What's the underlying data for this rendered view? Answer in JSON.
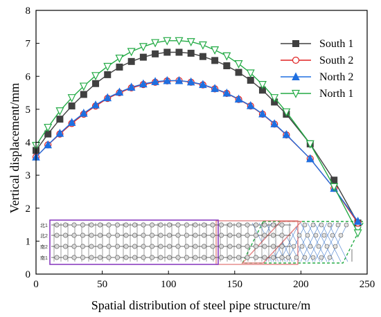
{
  "chart_data": {
    "type": "line",
    "title": "",
    "xlabel": "Spatial distribution of steel pipe structure/m",
    "ylabel": "Vertical displacement/mm",
    "xlim": [
      0,
      250
    ],
    "ylim": [
      0,
      8
    ],
    "xticks": [
      0,
      50,
      100,
      150,
      200,
      250
    ],
    "yticks": [
      0,
      1,
      2,
      3,
      4,
      5,
      6,
      7,
      8
    ],
    "grid": false,
    "legend_position": "top-right",
    "series": [
      {
        "name": "South 1",
        "color": "#404040",
        "marker": "square",
        "x": [
          0,
          9,
          18,
          27,
          36,
          45,
          54,
          63,
          72,
          81,
          90,
          99,
          108,
          117,
          126,
          135,
          144,
          153,
          162,
          171,
          180,
          189,
          207,
          225,
          243
        ],
        "y": [
          3.75,
          4.25,
          4.7,
          5.1,
          5.45,
          5.78,
          6.05,
          6.28,
          6.45,
          6.58,
          6.68,
          6.73,
          6.73,
          6.7,
          6.6,
          6.48,
          6.32,
          6.12,
          5.88,
          5.58,
          5.22,
          4.85,
          3.95,
          2.85,
          1.55
        ]
      },
      {
        "name": "South 2",
        "color": "#e02020",
        "marker": "circle-open",
        "x": [
          0,
          9,
          18,
          27,
          36,
          45,
          54,
          63,
          72,
          81,
          90,
          99,
          108,
          117,
          126,
          135,
          144,
          153,
          162,
          171,
          180,
          189,
          207,
          225,
          243
        ],
        "y": [
          3.55,
          3.92,
          4.25,
          4.57,
          4.85,
          5.1,
          5.33,
          5.5,
          5.65,
          5.75,
          5.82,
          5.86,
          5.87,
          5.82,
          5.74,
          5.62,
          5.48,
          5.3,
          5.1,
          4.85,
          4.55,
          4.22,
          3.5,
          2.6,
          1.55
        ]
      },
      {
        "name": "North 2",
        "color": "#1f6fe0",
        "marker": "triangle-up",
        "x": [
          0,
          9,
          18,
          27,
          36,
          45,
          54,
          63,
          72,
          81,
          90,
          99,
          108,
          117,
          126,
          135,
          144,
          153,
          162,
          171,
          180,
          189,
          207,
          225,
          243
        ],
        "y": [
          3.55,
          3.92,
          4.27,
          4.6,
          4.88,
          5.13,
          5.35,
          5.52,
          5.67,
          5.77,
          5.84,
          5.87,
          5.87,
          5.83,
          5.75,
          5.63,
          5.49,
          5.31,
          5.11,
          4.86,
          4.56,
          4.23,
          3.5,
          2.6,
          1.6
        ]
      },
      {
        "name": "North 1",
        "color": "#22aa44",
        "marker": "triangle-down-open",
        "x": [
          0,
          9,
          18,
          27,
          36,
          45,
          54,
          63,
          72,
          81,
          90,
          99,
          108,
          117,
          126,
          135,
          144,
          153,
          162,
          171,
          180,
          189,
          207,
          225,
          243
        ],
        "y": [
          3.9,
          4.45,
          4.95,
          5.35,
          5.7,
          6.02,
          6.3,
          6.55,
          6.75,
          6.9,
          7.02,
          7.08,
          7.08,
          7.05,
          6.95,
          6.8,
          6.62,
          6.38,
          6.1,
          5.75,
          5.35,
          4.92,
          3.95,
          2.65,
          1.25
        ]
      }
    ],
    "inset": {
      "row_labels": [
        "北1",
        "北2",
        "南2",
        "南1"
      ],
      "colors": {
        "left_frame": "#8a3fbf",
        "middle_frame": "#e07070",
        "right_frame": "#22aa44",
        "grid": "#3a3a3a",
        "mesh": "#4a7fd0"
      }
    }
  }
}
